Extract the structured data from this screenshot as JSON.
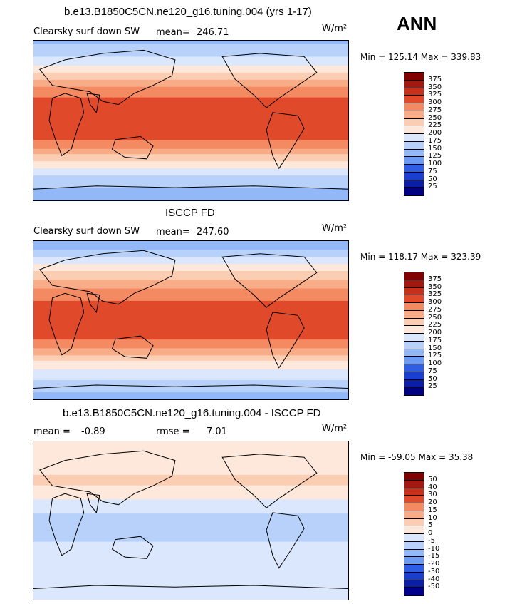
{
  "season": "ANN",
  "colors": {
    "abs": [
      "#000080",
      "#0a1fa6",
      "#1a3fcf",
      "#2e5ee6",
      "#4d7ff0",
      "#6d9bf3",
      "#93b8f7",
      "#b7d1fa",
      "#dbe7fd",
      "#fde8db",
      "#fbcdb2",
      "#f8ac87",
      "#f48a62",
      "#ee6a44",
      "#e04a2b",
      "#c9301c",
      "#a01810",
      "#800000"
    ],
    "diff": [
      "#00008a",
      "#0a1fa6",
      "#1a3fcf",
      "#2e5ee6",
      "#4d7ff0",
      "#6d9bf3",
      "#93b8f7",
      "#b7d1fa",
      "#dbe7fd",
      "#fde8db",
      "#fbcdb2",
      "#f8ac87",
      "#f48a62",
      "#ee6a44",
      "#e04a2b",
      "#c9301c",
      "#a01810",
      "#800000"
    ]
  },
  "panels": [
    {
      "id": "model",
      "title": "b.e13.B1850C5CN.ne120_g16.tuning.004 (yrs 1-17)",
      "variable": "Clearsky surf down SW",
      "mean_label": "mean=",
      "mean_value": "246.71",
      "rmse_label": "",
      "rmse_value": "",
      "units": "W/m²",
      "minmax": "Min = 125.14 Max = 339.83",
      "colorbar_labels": [
        "375",
        "350",
        "325",
        "300",
        "275",
        "250",
        "225",
        "200",
        "175",
        "150",
        "125",
        "100",
        "75",
        "50",
        "25"
      ]
    },
    {
      "id": "obs",
      "title": "ISCCP FD",
      "variable": "Clearsky surf down SW",
      "mean_label": "mean=",
      "mean_value": "247.60",
      "rmse_label": "",
      "rmse_value": "",
      "units": "W/m²",
      "minmax": "Min = 118.17 Max = 323.39",
      "colorbar_labels": [
        "375",
        "350",
        "325",
        "300",
        "275",
        "250",
        "225",
        "200",
        "175",
        "150",
        "125",
        "100",
        "75",
        "50",
        "25"
      ]
    },
    {
      "id": "diff",
      "title": "b.e13.B1850C5CN.ne120_g16.tuning.004 - ISCCP FD",
      "variable": "",
      "mean_label": "mean =",
      "mean_value": "-0.89",
      "rmse_label": "rmse =",
      "rmse_value": "7.01",
      "units": "W/m²",
      "minmax": "Min = -59.05 Max = 35.38",
      "colorbar_labels": [
        "50",
        "40",
        "30",
        "20",
        "15",
        "10",
        "5",
        "0",
        "-5",
        "-10",
        "-15",
        "-20",
        "-30",
        "-40",
        "-50"
      ]
    }
  ],
  "chart_data": [
    {
      "type": "heatmap",
      "title": "b.e13.B1850C5CN.ne120_g16.tuning.004 (yrs 1-17)",
      "variable": "Clearsky surf down SW",
      "units": "W/m²",
      "mean": 246.71,
      "min": 125.14,
      "max": 339.83,
      "contour_levels": [
        25,
        50,
        75,
        100,
        125,
        150,
        175,
        200,
        225,
        250,
        275,
        300,
        325,
        350,
        375
      ],
      "lat_profile": [
        [
          90,
          140
        ],
        [
          75,
          170
        ],
        [
          60,
          205
        ],
        [
          45,
          255
        ],
        [
          30,
          295
        ],
        [
          15,
          315
        ],
        [
          0,
          315
        ],
        [
          -15,
          310
        ],
        [
          -30,
          285
        ],
        [
          -45,
          225
        ],
        [
          -60,
          180
        ],
        [
          -75,
          150
        ],
        [
          -90,
          135
        ]
      ]
    },
    {
      "type": "heatmap",
      "title": "ISCCP FD",
      "variable": "Clearsky surf down SW",
      "units": "W/m²",
      "mean": 247.6,
      "min": 118.17,
      "max": 323.39,
      "contour_levels": [
        25,
        50,
        75,
        100,
        125,
        150,
        175,
        200,
        225,
        250,
        275,
        300,
        325,
        350,
        375
      ],
      "lat_profile": [
        [
          90,
          125
        ],
        [
          75,
          165
        ],
        [
          60,
          210
        ],
        [
          45,
          255
        ],
        [
          30,
          290
        ],
        [
          15,
          310
        ],
        [
          0,
          315
        ],
        [
          -15,
          310
        ],
        [
          -30,
          285
        ],
        [
          -45,
          230
        ],
        [
          -60,
          190
        ],
        [
          -75,
          160
        ],
        [
          -90,
          140
        ]
      ]
    },
    {
      "type": "heatmap",
      "title": "b.e13.B1850C5CN.ne120_g16.tuning.004 - ISCCP FD",
      "units": "W/m²",
      "mean": -0.89,
      "rmse": 7.01,
      "min": -59.05,
      "max": 35.38,
      "contour_levels": [
        -50,
        -40,
        -30,
        -20,
        -15,
        -10,
        -5,
        0,
        5,
        10,
        15,
        20,
        30,
        40,
        50
      ],
      "lat_profile": [
        [
          90,
          3
        ],
        [
          75,
          2
        ],
        [
          60,
          4
        ],
        [
          45,
          6
        ],
        [
          30,
          3
        ],
        [
          15,
          -4
        ],
        [
          0,
          -6
        ],
        [
          -15,
          -7
        ],
        [
          -30,
          -4
        ],
        [
          -45,
          -2
        ],
        [
          -60,
          -3
        ],
        [
          -75,
          -4
        ],
        [
          -90,
          -2
        ]
      ]
    }
  ]
}
